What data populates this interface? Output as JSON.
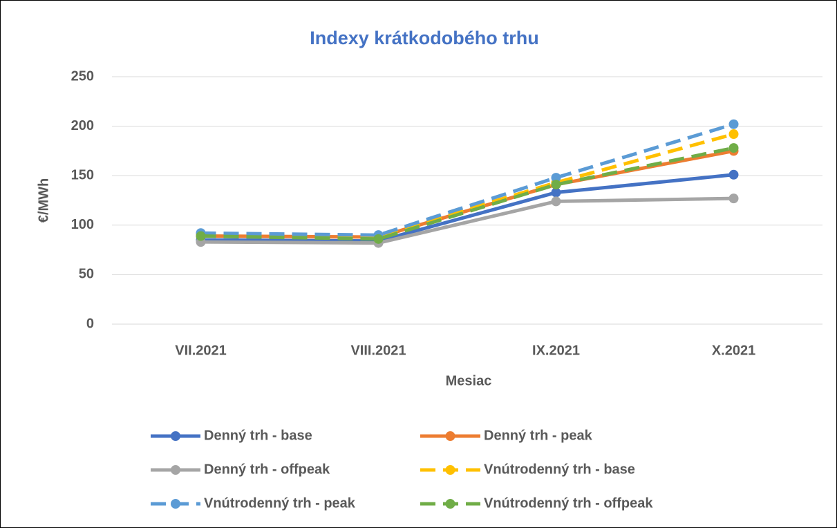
{
  "chart_data": {
    "type": "line",
    "title": "Indexy krátkodobého trhu",
    "x_label": "Mesiac",
    "y_label": "€/MWh",
    "categories": [
      "VII.2021",
      "VIII.2021",
      "IX.2021",
      "X.2021"
    ],
    "ylim": [
      0,
      250
    ],
    "yticks": [
      0,
      50,
      100,
      150,
      200,
      250
    ],
    "grid": true,
    "legend": "bottom",
    "series": [
      {
        "name": "Denný trh - base",
        "color": "#4472c4",
        "dashed": false,
        "values": [
          85,
          84,
          133,
          151
        ]
      },
      {
        "name": "Denný trh - peak",
        "color": "#ed7d31",
        "dashed": false,
        "values": [
          89,
          88,
          141,
          175
        ]
      },
      {
        "name": "Denný trh - offpeak",
        "color": "#a5a5a5",
        "dashed": false,
        "values": [
          83,
          82,
          124,
          127
        ]
      },
      {
        "name": "Vnútrodenný trh - base",
        "color": "#ffc000",
        "dashed": true,
        "values": [
          91,
          89,
          143,
          192
        ]
      },
      {
        "name": "Vnútrodenný trh - peak",
        "color": "#5b9bd5",
        "dashed": true,
        "values": [
          92,
          90,
          148,
          202
        ]
      },
      {
        "name": "Vnútrodenný trh - offpeak",
        "color": "#70ad47",
        "dashed": true,
        "values": [
          89,
          86,
          141,
          178
        ]
      }
    ]
  }
}
